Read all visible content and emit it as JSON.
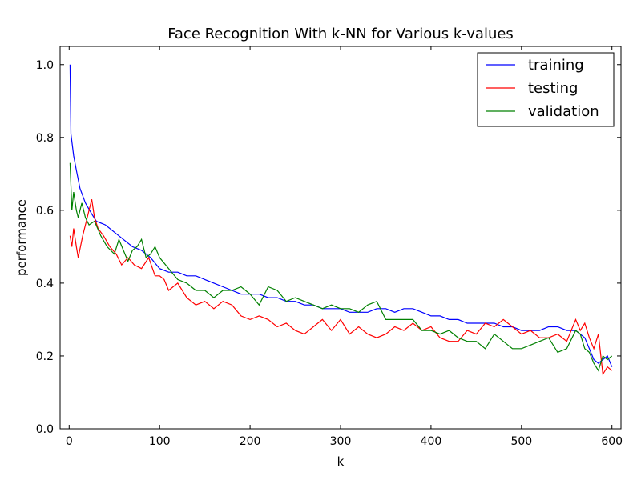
{
  "chart_data": {
    "type": "line",
    "title": "Face Recognition With k-NN for Various k-values",
    "xlabel": "k",
    "ylabel": "performance",
    "xlim": [
      -10,
      610
    ],
    "ylim": [
      0.0,
      1.05
    ],
    "xticks": [
      0,
      100,
      200,
      300,
      400,
      500,
      600
    ],
    "yticks": [
      0.0,
      0.2,
      0.4,
      0.6,
      0.8,
      1.0
    ],
    "xtick_labels": [
      "0",
      "100",
      "200",
      "300",
      "400",
      "500",
      "600"
    ],
    "ytick_labels": [
      "0.0",
      "0.2",
      "0.4",
      "0.6",
      "0.8",
      "1.0"
    ],
    "grid": false,
    "legend_position": "top-right",
    "series": [
      {
        "name": "training",
        "color": "#0000ff",
        "x": [
          1,
          2,
          5,
          8,
          12,
          18,
          25,
          30,
          40,
          50,
          60,
          70,
          80,
          90,
          100,
          110,
          120,
          130,
          140,
          150,
          160,
          170,
          180,
          190,
          200,
          210,
          220,
          230,
          240,
          250,
          260,
          270,
          280,
          290,
          300,
          310,
          320,
          330,
          340,
          350,
          360,
          370,
          380,
          390,
          400,
          410,
          420,
          430,
          440,
          450,
          460,
          470,
          480,
          490,
          500,
          510,
          520,
          530,
          540,
          550,
          560,
          570,
          575,
          580,
          585,
          590,
          595,
          600
        ],
        "y": [
          1.0,
          0.81,
          0.75,
          0.71,
          0.66,
          0.62,
          0.59,
          0.57,
          0.56,
          0.54,
          0.52,
          0.5,
          0.49,
          0.47,
          0.44,
          0.43,
          0.43,
          0.42,
          0.42,
          0.41,
          0.4,
          0.39,
          0.38,
          0.37,
          0.37,
          0.37,
          0.36,
          0.36,
          0.35,
          0.35,
          0.34,
          0.34,
          0.33,
          0.33,
          0.33,
          0.32,
          0.32,
          0.32,
          0.33,
          0.33,
          0.32,
          0.33,
          0.33,
          0.32,
          0.31,
          0.31,
          0.3,
          0.3,
          0.29,
          0.29,
          0.29,
          0.29,
          0.28,
          0.28,
          0.27,
          0.27,
          0.27,
          0.28,
          0.28,
          0.27,
          0.27,
          0.25,
          0.22,
          0.19,
          0.18,
          0.19,
          0.2,
          0.17
        ]
      },
      {
        "name": "testing",
        "color": "#ff0000",
        "x": [
          1,
          3,
          5,
          8,
          10,
          15,
          18,
          22,
          25,
          28,
          32,
          38,
          45,
          52,
          58,
          65,
          72,
          80,
          88,
          95,
          100,
          105,
          110,
          120,
          130,
          140,
          150,
          160,
          170,
          180,
          190,
          200,
          210,
          220,
          230,
          240,
          250,
          260,
          270,
          280,
          290,
          300,
          310,
          320,
          330,
          340,
          350,
          360,
          370,
          380,
          390,
          400,
          410,
          420,
          430,
          440,
          450,
          460,
          470,
          480,
          490,
          500,
          510,
          520,
          530,
          540,
          550,
          560,
          565,
          570,
          575,
          580,
          585,
          590,
          595,
          600
        ],
        "y": [
          0.53,
          0.5,
          0.55,
          0.5,
          0.47,
          0.53,
          0.56,
          0.6,
          0.63,
          0.58,
          0.55,
          0.53,
          0.5,
          0.48,
          0.45,
          0.47,
          0.45,
          0.44,
          0.47,
          0.42,
          0.42,
          0.41,
          0.38,
          0.4,
          0.36,
          0.34,
          0.35,
          0.33,
          0.35,
          0.34,
          0.31,
          0.3,
          0.31,
          0.3,
          0.28,
          0.29,
          0.27,
          0.26,
          0.28,
          0.3,
          0.27,
          0.3,
          0.26,
          0.28,
          0.26,
          0.25,
          0.26,
          0.28,
          0.27,
          0.29,
          0.27,
          0.28,
          0.25,
          0.24,
          0.24,
          0.27,
          0.26,
          0.29,
          0.28,
          0.3,
          0.28,
          0.26,
          0.27,
          0.25,
          0.25,
          0.26,
          0.24,
          0.3,
          0.27,
          0.29,
          0.25,
          0.22,
          0.26,
          0.15,
          0.17,
          0.16
        ]
      },
      {
        "name": "validation",
        "color": "#008000",
        "x": [
          1,
          3,
          5,
          8,
          10,
          14,
          18,
          22,
          28,
          35,
          42,
          50,
          55,
          60,
          65,
          70,
          75,
          80,
          85,
          90,
          95,
          100,
          110,
          120,
          130,
          140,
          150,
          160,
          170,
          180,
          190,
          200,
          210,
          220,
          230,
          240,
          250,
          260,
          270,
          280,
          290,
          300,
          310,
          320,
          330,
          340,
          350,
          360,
          370,
          380,
          390,
          400,
          410,
          420,
          430,
          440,
          450,
          460,
          470,
          480,
          490,
          500,
          510,
          520,
          530,
          540,
          550,
          560,
          565,
          570,
          575,
          580,
          585,
          590,
          595,
          600
        ],
        "y": [
          0.73,
          0.6,
          0.65,
          0.6,
          0.58,
          0.62,
          0.58,
          0.56,
          0.57,
          0.53,
          0.5,
          0.48,
          0.52,
          0.49,
          0.46,
          0.49,
          0.5,
          0.52,
          0.47,
          0.48,
          0.5,
          0.47,
          0.44,
          0.41,
          0.4,
          0.38,
          0.38,
          0.36,
          0.38,
          0.38,
          0.39,
          0.37,
          0.34,
          0.39,
          0.38,
          0.35,
          0.36,
          0.35,
          0.34,
          0.33,
          0.34,
          0.33,
          0.33,
          0.32,
          0.34,
          0.35,
          0.3,
          0.3,
          0.3,
          0.3,
          0.27,
          0.27,
          0.26,
          0.27,
          0.25,
          0.24,
          0.24,
          0.22,
          0.26,
          0.24,
          0.22,
          0.22,
          0.23,
          0.24,
          0.25,
          0.21,
          0.22,
          0.27,
          0.26,
          0.22,
          0.21,
          0.18,
          0.16,
          0.2,
          0.19,
          0.2
        ]
      }
    ]
  }
}
